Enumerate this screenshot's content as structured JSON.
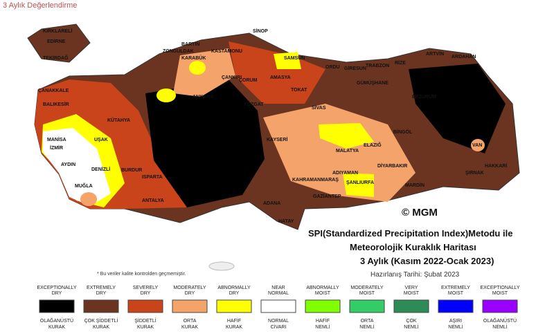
{
  "header": {
    "title": "3 Aylık Değerlendirme"
  },
  "map": {
    "cities": [
      "KIRKLARELİ",
      "EDİRNE",
      "TEKİRDAĞ",
      "ÇANAKKALE",
      "BALIKESİR",
      "MANİSA",
      "İZMİR",
      "AYDIN",
      "DENİZLİ",
      "MUĞLA",
      "ANTALYA",
      "BURDUR",
      "ISPARTA",
      "UŞAK",
      "KÜTAHYA",
      "BARTIN",
      "ZONGULDAK",
      "KARABÜK",
      "KASTAMONU",
      "SİNOP",
      "SAMSUN",
      "ÇORUM",
      "AMASYA",
      "TOKAT",
      "ÇANKIRI",
      "ANKARA",
      "YOZGAT",
      "SİVAS",
      "KAYSERİ",
      "MALATYA",
      "ELAZIĞ",
      "BİNGÖL",
      "ERZURUM",
      "ARTVİN",
      "ARDAHAN",
      "RİZE",
      "TRABZON",
      "ORDU",
      "GİRESUN",
      "GÜMÜŞHANE",
      "DİYARBAKIR",
      "MARDİN",
      "ŞIRNAK",
      "HAKKARİ",
      "VAN",
      "ADIYAMAN",
      "ŞANLIURFA",
      "GAZİANTEP",
      "KAHRAMANMARAŞ",
      "ADANA",
      "HATAY"
    ],
    "copyright": "© MGM",
    "note": "* Bu veriler kalite kontrolden geçmemiştir."
  },
  "title_block": {
    "line1": "SPI(Standardized Precipitation Index)Metodu ile",
    "line2": "Meteorolojik Kuraklık Haritası",
    "line3": "3 Aylık (Kasım 2022-Ocak 2023)",
    "date": "Hazırlanış Tarihi: Şubat 2023"
  },
  "legend": {
    "items": [
      {
        "top": [
          "EXCEPTIONALLY",
          "DRY"
        ],
        "color": "#000000",
        "bottom": [
          "OLAĞANÜSTÜ",
          "KURAK"
        ]
      },
      {
        "top": [
          "EXTREMELY",
          "DRY"
        ],
        "color": "#6b3420",
        "bottom": [
          "ÇOK ŞİDDETLİ",
          "KURAK"
        ]
      },
      {
        "top": [
          "SEVERELY",
          "DRY"
        ],
        "color": "#c9441a",
        "bottom": [
          "ŞİDDETLİ",
          "KURAK"
        ]
      },
      {
        "top": [
          "MODERATELY",
          "DRY"
        ],
        "color": "#f4a46a",
        "bottom": [
          "ORTA",
          "KURAK"
        ]
      },
      {
        "top": [
          "ABNORMALLY",
          "DRY"
        ],
        "color": "#ffff00",
        "bottom": [
          "HAFİF",
          "KURAK"
        ]
      },
      {
        "top": [
          "NEAR",
          "NORMAL"
        ],
        "color": "#ffffff",
        "bottom": [
          "NORMAL",
          "CİVARI"
        ]
      },
      {
        "top": [
          "ABNORMALLY",
          "MOIST"
        ],
        "color": "#80ff00",
        "bottom": [
          "HAFİF",
          "NEMLİ"
        ]
      },
      {
        "top": [
          "MODERATELY",
          "MOIST"
        ],
        "color": "#33cc66",
        "bottom": [
          "ORTA",
          "NEMLİ"
        ]
      },
      {
        "top": [
          "VERY",
          "MOIST"
        ],
        "color": "#2e8b57",
        "bottom": [
          "ÇOK",
          "NEMLİ"
        ]
      },
      {
        "top": [
          "EXTREMELY",
          "MOIST"
        ],
        "color": "#0000ff",
        "bottom": [
          "AŞIRI",
          "NEMLİ"
        ]
      },
      {
        "top": [
          "EXCEPTIONALLY",
          "MOIST"
        ],
        "color": "#9900ff",
        "bottom": [
          "OLAĞANÜSTÜ",
          "NEMLİ"
        ]
      }
    ]
  }
}
